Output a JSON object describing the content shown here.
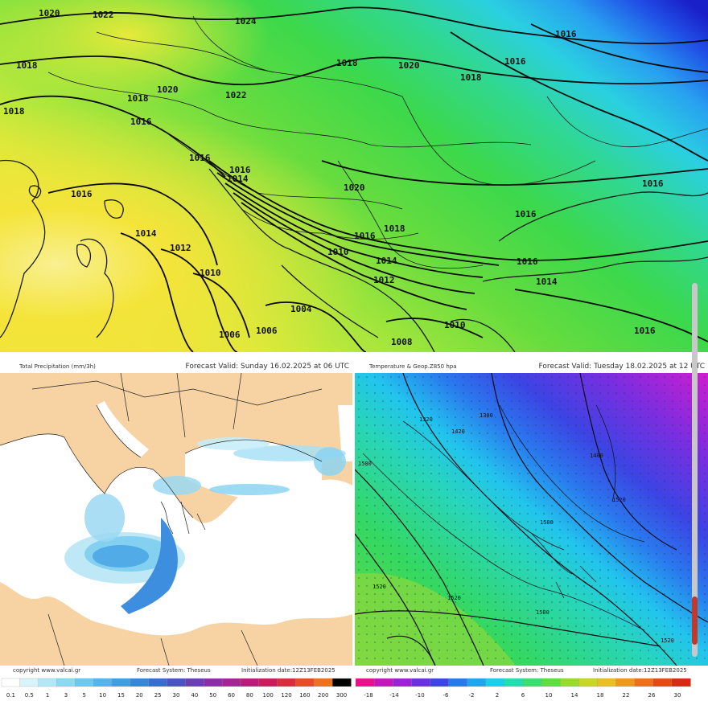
{
  "top_map": {
    "isobar_labels": [
      "1020",
      "1022",
      "1024",
      "1018",
      "1018",
      "1020",
      "1018",
      "1016",
      "1016",
      "1016",
      "1022",
      "1018",
      "1016",
      "1014",
      "1016",
      "1014",
      "1012",
      "1010",
      "1020",
      "1016",
      "1018",
      "1010",
      "1014",
      "1012",
      "1016",
      "1014",
      "1004",
      "1006",
      "1006",
      "1008",
      "1010",
      "1016",
      "1016",
      "1016",
      "1016",
      "1018",
      "1022",
      "1020",
      "1018",
      "1016"
    ]
  },
  "precip": {
    "title": "Total Precipitation (mm/3h)",
    "valid": "Forecast Valid:   Sunday 16.02.2025 at 06 UTC",
    "copyright": "copyright www.valcai.gr",
    "system": "Forecast System: Theseus",
    "init": "Initialization date:12Z13FEB2025"
  },
  "temp": {
    "title": "Temperature & Geop.Z850 hpa",
    "valid": "Forecast Valid:   Tuesday 18.02.2025 at 12 UTC",
    "copyright": "copyright www.valcai.gr",
    "system": "Forecast System: Theseus",
    "init": "Initialization date:12Z13FEB2025",
    "contour_labels": [
      "1300",
      "1320",
      "1400",
      "1420",
      "1500",
      "1520",
      "1500",
      "1520",
      "1520",
      "1500",
      "1520"
    ]
  },
  "precip_legend": {
    "values": [
      "0.1",
      "0.5",
      "1",
      "3",
      "5",
      "10",
      "15",
      "20",
      "25",
      "30",
      "40",
      "50",
      "60",
      "80",
      "100",
      "120",
      "160",
      "200",
      "300"
    ],
    "colors": [
      "#ffffff",
      "#d8f4fb",
      "#b2e8f6",
      "#8ed8f2",
      "#6ec8ee",
      "#56b4e9",
      "#3f9fe3",
      "#3a85dc",
      "#3a6bd2",
      "#4a52c4",
      "#6a3fb4",
      "#8a30a4",
      "#a42494",
      "#bd1a7c",
      "#cf1a5c",
      "#de2a3e",
      "#e84a2a",
      "#f07020",
      "#000000"
    ]
  },
  "temp_legend": {
    "values": [
      "-18",
      "-14",
      "-10",
      "-6",
      "-2",
      "2",
      "6",
      "10",
      "14",
      "18",
      "22",
      "26",
      "30"
    ],
    "colors": [
      "#e8108c",
      "#c418b8",
      "#9a22d8",
      "#6a30e6",
      "#3c44ea",
      "#2878ee",
      "#1ca8f0",
      "#18d0e8",
      "#20e0b0",
      "#38e070",
      "#60de3c",
      "#98dc28",
      "#c8d820",
      "#e8c020",
      "#f09818",
      "#f07018",
      "#e84818",
      "#d82818"
    ]
  }
}
